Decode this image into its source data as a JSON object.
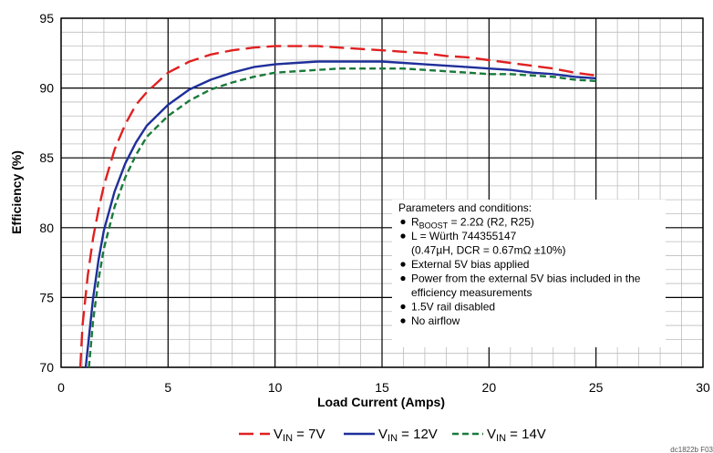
{
  "chart_data": {
    "type": "line",
    "title": "",
    "xlabel": "Load Current (Amps)",
    "ylabel": "Efficiency (%)",
    "xlim": [
      0,
      30
    ],
    "ylim": [
      70,
      95
    ],
    "xticks": [
      "0",
      "5",
      "10",
      "15",
      "20",
      "25",
      "30"
    ],
    "yticks": [
      "70",
      "75",
      "80",
      "85",
      "90",
      "95"
    ],
    "grid": "major and minor",
    "legend_position": "bottom",
    "series": [
      {
        "name": "VIN = 7V",
        "legend_main": "V",
        "legend_sub": "IN",
        "legend_rest": " = 7V",
        "color": "#e02020",
        "style": "long-dash",
        "x": [
          0.9,
          1.0,
          1.25,
          1.5,
          1.75,
          2.0,
          2.5,
          3.0,
          3.5,
          4.0,
          5.0,
          6.0,
          7.0,
          8.0,
          9.0,
          10.0,
          11.0,
          12.0,
          13.0,
          14.0,
          15.0,
          16.0,
          17.0,
          18.0,
          19.0,
          20.0,
          21.0,
          22.0,
          23.0,
          24.0,
          25.0
        ],
        "y": [
          70.0,
          73.0,
          76.6,
          79.3,
          81.3,
          83.0,
          85.6,
          87.4,
          88.8,
          89.7,
          91.1,
          91.9,
          92.4,
          92.7,
          92.9,
          93.0,
          93.0,
          93.0,
          92.9,
          92.8,
          92.7,
          92.6,
          92.5,
          92.3,
          92.2,
          92.0,
          91.8,
          91.6,
          91.4,
          91.1,
          90.9
        ]
      },
      {
        "name": "VIN = 12V",
        "legend_main": "V",
        "legend_sub": "IN",
        "legend_rest": " = 12V",
        "color": "#1f2f9a",
        "style": "solid",
        "x": [
          1.15,
          1.5,
          1.75,
          2.0,
          2.5,
          3.0,
          3.5,
          4.0,
          5.0,
          6.0,
          7.0,
          8.0,
          9.0,
          10.0,
          11.0,
          12.0,
          13.0,
          14.0,
          15.0,
          16.0,
          17.0,
          18.0,
          19.0,
          20.0,
          21.0,
          22.0,
          23.0,
          24.0,
          25.0
        ],
        "y": [
          70.0,
          75.0,
          77.7,
          79.8,
          82.6,
          84.6,
          86.1,
          87.3,
          88.8,
          89.9,
          90.6,
          91.1,
          91.5,
          91.7,
          91.8,
          91.9,
          91.9,
          91.9,
          91.9,
          91.8,
          91.7,
          91.6,
          91.5,
          91.4,
          91.3,
          91.1,
          91.0,
          90.8,
          90.7
        ]
      },
      {
        "name": "VIN = 14V",
        "legend_main": "V",
        "legend_sub": "IN",
        "legend_rest": " = 14V",
        "color": "#1a7a3a",
        "style": "short-dash",
        "x": [
          1.3,
          1.5,
          1.75,
          2.0,
          2.5,
          3.0,
          3.5,
          4.0,
          5.0,
          6.0,
          7.0,
          8.0,
          9.0,
          10.0,
          11.0,
          12.0,
          13.0,
          14.0,
          15.0,
          16.0,
          17.0,
          18.0,
          19.0,
          20.0,
          21.0,
          22.0,
          23.0,
          24.0,
          25.0
        ],
        "y": [
          70.0,
          73.4,
          76.3,
          78.5,
          81.5,
          83.6,
          85.2,
          86.5,
          88.0,
          89.1,
          89.9,
          90.4,
          90.8,
          91.1,
          91.2,
          91.3,
          91.4,
          91.4,
          91.4,
          91.4,
          91.3,
          91.2,
          91.1,
          91.0,
          91.0,
          90.9,
          90.8,
          90.6,
          90.5
        ]
      }
    ],
    "annotation": {
      "title": "Parameters and conditions:",
      "items": [
        {
          "main": "R",
          "sub": "BOOST",
          "rest": " = 2.2Ω (R2, R25)"
        },
        {
          "main": "L = Würth 744355147",
          "sub": "",
          "rest": ""
        },
        {
          "main": "",
          "sub": "",
          "rest": "",
          "continuation": "(0.47µH, DCR = 0.67mΩ ±10%)"
        },
        {
          "main": "External 5V bias applied",
          "sub": "",
          "rest": ""
        },
        {
          "main": "Power from the external 5V bias included in the",
          "sub": "",
          "rest": ""
        },
        {
          "main": "",
          "sub": "",
          "rest": "",
          "continuation": "efficiency measurements"
        },
        {
          "main": "1.5V rail disabled",
          "sub": "",
          "rest": ""
        },
        {
          "main": "No airflow",
          "sub": "",
          "rest": ""
        }
      ]
    },
    "figure_ref": "dc1822b F03"
  }
}
